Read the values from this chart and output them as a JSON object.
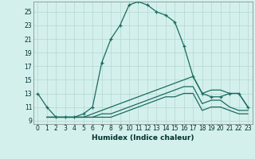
{
  "xlabel": "Humidex (Indice chaleur)",
  "bg_color": "#d4f0ec",
  "grid_color": "#b8dbd6",
  "line_color": "#1a6b60",
  "xlim": [
    -0.5,
    23.5
  ],
  "ylim": [
    8.5,
    26.5
  ],
  "xticks": [
    0,
    1,
    2,
    3,
    4,
    5,
    6,
    7,
    8,
    9,
    10,
    11,
    12,
    13,
    14,
    15,
    16,
    17,
    18,
    19,
    20,
    21,
    22,
    23
  ],
  "yticks": [
    9,
    11,
    13,
    15,
    17,
    19,
    21,
    23,
    25
  ],
  "line1_x": [
    0,
    1,
    2,
    3,
    4,
    5,
    6,
    7,
    8,
    9,
    10,
    11,
    12,
    13,
    14,
    15,
    16,
    17,
    18,
    19,
    20,
    21,
    22,
    23
  ],
  "line1_y": [
    13,
    11,
    9.5,
    9.5,
    9.5,
    10,
    11,
    17.5,
    21,
    23,
    26,
    26.5,
    26,
    25,
    24.5,
    23.5,
    20,
    15.5,
    13,
    12.5,
    12.5,
    13,
    13,
    11
  ],
  "line2_x": [
    1,
    2,
    3,
    4,
    5,
    6,
    7,
    8,
    9,
    10,
    11,
    12,
    13,
    14,
    15,
    16,
    17,
    18,
    19,
    20,
    21,
    22,
    23
  ],
  "line2_y": [
    9.5,
    9.5,
    9.5,
    9.5,
    9.5,
    10,
    10.5,
    11,
    11.5,
    12,
    12.5,
    13,
    13.5,
    14,
    14.5,
    15,
    15.5,
    13,
    13.5,
    13.5,
    13,
    13,
    11
  ],
  "line3_x": [
    1,
    2,
    3,
    4,
    5,
    6,
    7,
    8,
    9,
    10,
    11,
    12,
    13,
    14,
    15,
    16,
    17,
    18,
    19,
    20,
    21,
    22,
    23
  ],
  "line3_y": [
    9.5,
    9.5,
    9.5,
    9.5,
    9.5,
    9.5,
    10,
    10,
    10.5,
    11,
    11.5,
    12,
    12.5,
    13,
    13.5,
    14,
    14,
    11.5,
    12,
    12,
    11,
    10.5,
    10.5
  ],
  "line4_x": [
    1,
    2,
    3,
    4,
    5,
    6,
    7,
    8,
    9,
    10,
    11,
    12,
    13,
    14,
    15,
    16,
    17,
    18,
    19,
    20,
    21,
    22,
    23
  ],
  "line4_y": [
    9.5,
    9.5,
    9.5,
    9.5,
    9.5,
    9.5,
    9.5,
    9.5,
    10,
    10.5,
    11,
    11.5,
    12,
    12.5,
    12.5,
    13,
    13,
    10.5,
    11,
    11,
    10.5,
    10,
    10
  ]
}
